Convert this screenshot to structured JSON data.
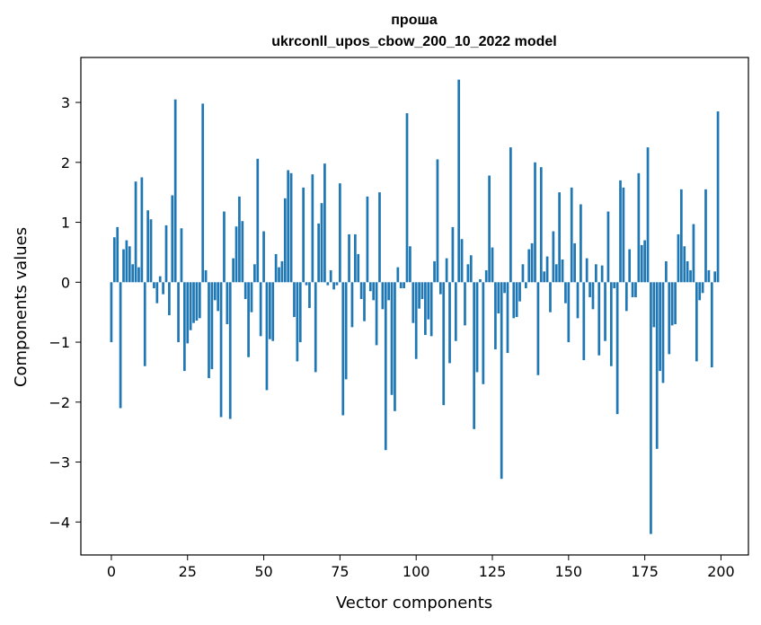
{
  "chart_data": {
    "type": "bar",
    "title": [
      "проша",
      "ukrconll_upos_cbow_200_10_2022 model"
    ],
    "xlabel": "Vector components",
    "ylabel": "Components values",
    "xlim": [
      -10,
      209
    ],
    "ylim": [
      -4.55,
      3.75
    ],
    "xticks": [
      0,
      25,
      50,
      75,
      100,
      125,
      150,
      175,
      200
    ],
    "yticks": [
      -4,
      -3,
      -2,
      -1,
      0,
      1,
      2,
      3
    ],
    "grid": false,
    "bar_color": "#1f77b4",
    "x": [
      0,
      1,
      2,
      3,
      4,
      5,
      6,
      7,
      8,
      9,
      10,
      11,
      12,
      13,
      14,
      15,
      16,
      17,
      18,
      19,
      20,
      21,
      22,
      23,
      24,
      25,
      26,
      27,
      28,
      29,
      30,
      31,
      32,
      33,
      34,
      35,
      36,
      37,
      38,
      39,
      40,
      41,
      42,
      43,
      44,
      45,
      46,
      47,
      48,
      49,
      50,
      51,
      52,
      53,
      54,
      55,
      56,
      57,
      58,
      59,
      60,
      61,
      62,
      63,
      64,
      65,
      66,
      67,
      68,
      69,
      70,
      71,
      72,
      73,
      74,
      75,
      76,
      77,
      78,
      79,
      80,
      81,
      82,
      83,
      84,
      85,
      86,
      87,
      88,
      89,
      90,
      91,
      92,
      93,
      94,
      95,
      96,
      97,
      98,
      99,
      100,
      101,
      102,
      103,
      104,
      105,
      106,
      107,
      108,
      109,
      110,
      111,
      112,
      113,
      114,
      115,
      116,
      117,
      118,
      119,
      120,
      121,
      122,
      123,
      124,
      125,
      126,
      127,
      128,
      129,
      130,
      131,
      132,
      133,
      134,
      135,
      136,
      137,
      138,
      139,
      140,
      141,
      142,
      143,
      144,
      145,
      146,
      147,
      148,
      149,
      150,
      151,
      152,
      153,
      154,
      155,
      156,
      157,
      158,
      159,
      160,
      161,
      162,
      163,
      164,
      165,
      166,
      167,
      168,
      169,
      170,
      171,
      172,
      173,
      174,
      175,
      176,
      177,
      178,
      179,
      180,
      181,
      182,
      183,
      184,
      185,
      186,
      187,
      188,
      189,
      190,
      191,
      192,
      193,
      194,
      195,
      196,
      197,
      198,
      199
    ],
    "values": [
      -1.0,
      0.75,
      0.92,
      -2.1,
      0.55,
      0.7,
      0.6,
      0.3,
      1.68,
      0.25,
      1.75,
      -1.4,
      1.2,
      1.05,
      -0.1,
      -0.35,
      0.1,
      -0.2,
      0.95,
      -0.55,
      1.45,
      3.05,
      -1.0,
      0.9,
      -1.48,
      -1.02,
      -0.8,
      -0.68,
      -0.64,
      -0.6,
      2.98,
      0.2,
      -1.6,
      -1.45,
      -0.3,
      -0.48,
      -2.25,
      1.18,
      -0.7,
      -2.28,
      0.4,
      0.93,
      1.43,
      1.02,
      -0.28,
      -1.25,
      -0.5,
      0.3,
      2.06,
      -0.9,
      0.85,
      -1.8,
      -0.95,
      -0.98,
      0.47,
      0.25,
      0.35,
      1.4,
      1.87,
      1.82,
      -0.58,
      -1.32,
      -1.0,
      1.58,
      -0.05,
      -0.43,
      1.8,
      -1.5,
      0.98,
      1.32,
      1.98,
      -0.05,
      0.2,
      -0.12,
      -0.05,
      1.65,
      -2.22,
      -1.62,
      0.8,
      -0.75,
      0.8,
      0.47,
      -0.28,
      -0.65,
      1.43,
      -0.15,
      -0.3,
      -1.05,
      1.5,
      -0.45,
      -2.8,
      -0.3,
      -1.88,
      -2.15,
      0.25,
      -0.1,
      -0.1,
      2.82,
      0.6,
      -0.68,
      -1.28,
      -0.44,
      -0.28,
      -0.88,
      -0.62,
      -0.9,
      0.35,
      2.05,
      -0.2,
      -2.05,
      0.4,
      -1.35,
      0.92,
      -0.98,
      3.38,
      0.72,
      -0.72,
      0.3,
      0.45,
      -2.45,
      -1.5,
      0.05,
      -1.7,
      0.2,
      1.78,
      0.58,
      -1.12,
      -0.52,
      -3.28,
      -0.18,
      -1.18,
      2.25,
      -0.6,
      -0.58,
      -0.32,
      0.3,
      -0.1,
      0.55,
      0.65,
      2.0,
      -1.55,
      1.92,
      0.18,
      0.43,
      -0.5,
      0.85,
      0.3,
      1.5,
      0.38,
      -0.35,
      -1.0,
      1.58,
      0.65,
      -0.6,
      1.3,
      -1.3,
      0.4,
      -0.25,
      -0.45,
      0.3,
      -1.22,
      0.28,
      -0.98,
      1.18,
      -1.4,
      -0.1,
      -2.2,
      1.7,
      1.58,
      -0.48,
      0.55,
      -0.25,
      -0.25,
      1.82,
      0.62,
      0.7,
      2.25,
      -4.2,
      -0.75,
      -2.78,
      -1.48,
      -1.68,
      0.35,
      -1.2,
      -0.72,
      -0.7,
      0.8,
      1.55,
      0.6,
      0.35,
      0.2,
      0.97,
      -1.32,
      -0.3,
      -0.18,
      1.55,
      0.2,
      -1.42,
      0.18,
      2.85
    ]
  }
}
